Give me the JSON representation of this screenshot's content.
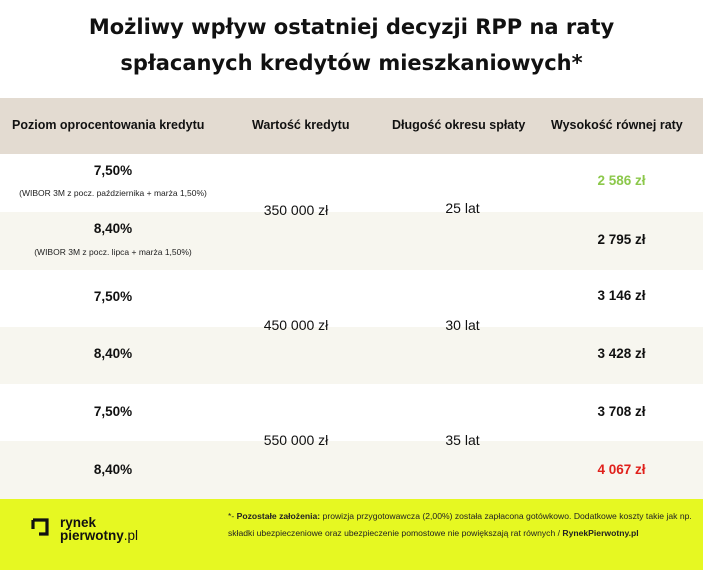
{
  "title": {
    "line1": "Możliwy wpływ ostatniej decyzji RPP na raty",
    "line2": "spłacanych kredytów mieszkaniowych*"
  },
  "headers": {
    "rate": "Poziom oprocentowania kredytu",
    "value": "Wartość kredytu",
    "period": "Długość okresu spłaty",
    "payment": "Wysokość równej raty"
  },
  "groups": [
    {
      "value": "350 000 zł",
      "period": "25 lat",
      "rows": [
        {
          "rate": "7,50%",
          "note": "(WIBOR 3M z pocz. października + marża 1,50%)",
          "payment": "2 586 zł",
          "payment_color": "#8cc84b"
        },
        {
          "rate": "8,40%",
          "note": "(WIBOR 3M z pocz. lipca + marża 1,50%)",
          "payment": "2 795 zł",
          "payment_color": "#111111"
        }
      ]
    },
    {
      "value": "450 000 zł",
      "period": "30 lat",
      "rows": [
        {
          "rate": "7,50%",
          "payment": "3 146 zł",
          "payment_color": "#111111"
        },
        {
          "rate": "8,40%",
          "payment": "3 428 zł",
          "payment_color": "#111111"
        }
      ]
    },
    {
      "value": "550 000 zł",
      "period": "35 lat",
      "rows": [
        {
          "rate": "7,50%",
          "payment": "3 708 zł",
          "payment_color": "#111111"
        },
        {
          "rate": "8,40%",
          "payment": "4 067 zł",
          "payment_color": "#e0201b"
        }
      ]
    }
  ],
  "footer": {
    "logo_line1": "rynek",
    "logo_line2": "pierwotny",
    "logo_suffix": ".pl",
    "note_prefix": "*- ",
    "note_bold": "Pozostałe założenia:",
    "note_text": " prowizja przygotowawcza (2,00%) została zapłacona gotówkowo. Dodatkowe koszty takie jak np. składki ubezpieczeniowe oraz ubezpieczenie pomostowe nie powiększają rat równych / ",
    "note_source": "RynekPierwotny.pl"
  },
  "colors": {
    "header_bg": "#e3dbd1",
    "band_bg": "#f7f6ef",
    "footer_bg": "#e6f822",
    "lowest_payment": "#8cc84b",
    "highest_payment": "#e0201b"
  }
}
